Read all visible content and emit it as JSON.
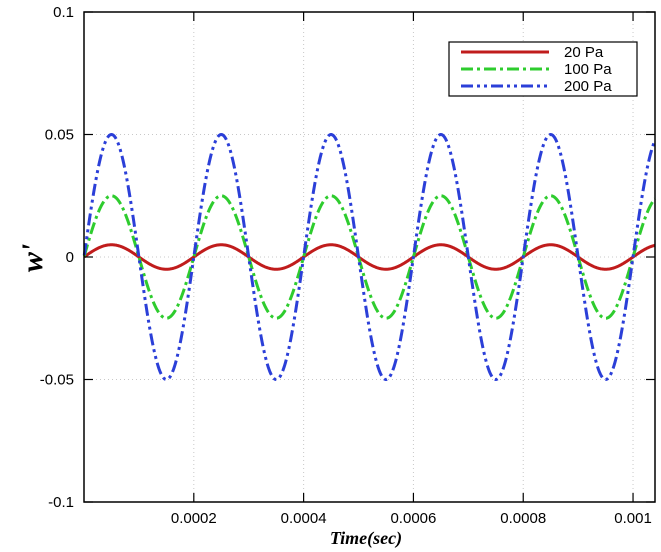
{
  "chart_data": {
    "type": "line",
    "title": "",
    "xlabel": "Time(sec)",
    "ylabel": "w'",
    "xlim": [
      0,
      0.00104
    ],
    "ylim": [
      -0.1,
      0.1
    ],
    "x_ticks": [
      0.0002,
      0.0004,
      0.0006,
      0.0008,
      0.001
    ],
    "x_tick_labels": [
      "0.0002",
      "0.0004",
      "0.0006",
      "0.0008",
      "0.001"
    ],
    "y_ticks": [
      -0.1,
      -0.05,
      0,
      0.05,
      0.1
    ],
    "y_tick_labels": [
      "-0.1",
      "-0.05",
      "0",
      "0.05",
      "0.1"
    ],
    "grid": true,
    "legend_position": "top-right",
    "signal": {
      "form": "amplitude * sin(2*pi*x/period)",
      "period": 0.0002,
      "start": 5e-07
    },
    "series": [
      {
        "name": "20 Pa",
        "amplitude": 0.005,
        "color": "#c01c1c",
        "dash": "solid"
      },
      {
        "name": "100 Pa",
        "amplitude": 0.025,
        "color": "#2ecc2e",
        "dash": "dash-dot"
      },
      {
        "name": "200 Pa",
        "amplitude": 0.05,
        "color": "#2b3fd8",
        "dash": "dash-dot-dot"
      }
    ]
  }
}
